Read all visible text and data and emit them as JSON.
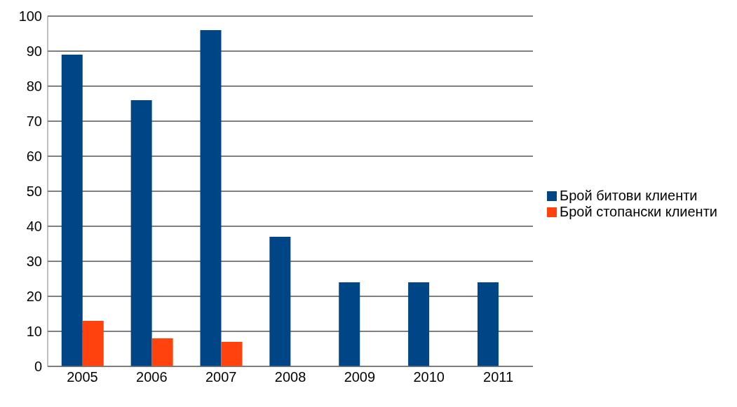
{
  "chart_data": {
    "type": "bar",
    "categories": [
      "2005",
      "2006",
      "2007",
      "2008",
      "2009",
      "2010",
      "2011"
    ],
    "series": [
      {
        "name": "Брой битови клиенти",
        "color": "#004586",
        "values": [
          89,
          76,
          96,
          37,
          24,
          24,
          24
        ]
      },
      {
        "name": "Брой стопански клиенти",
        "color": "#ff420e",
        "values": [
          13,
          8,
          7,
          null,
          null,
          null,
          null
        ]
      }
    ],
    "ylim": [
      0,
      100
    ],
    "yticks": [
      0,
      10,
      20,
      30,
      40,
      50,
      60,
      70,
      80,
      90,
      100
    ],
    "grid": "y",
    "legend": "right"
  }
}
